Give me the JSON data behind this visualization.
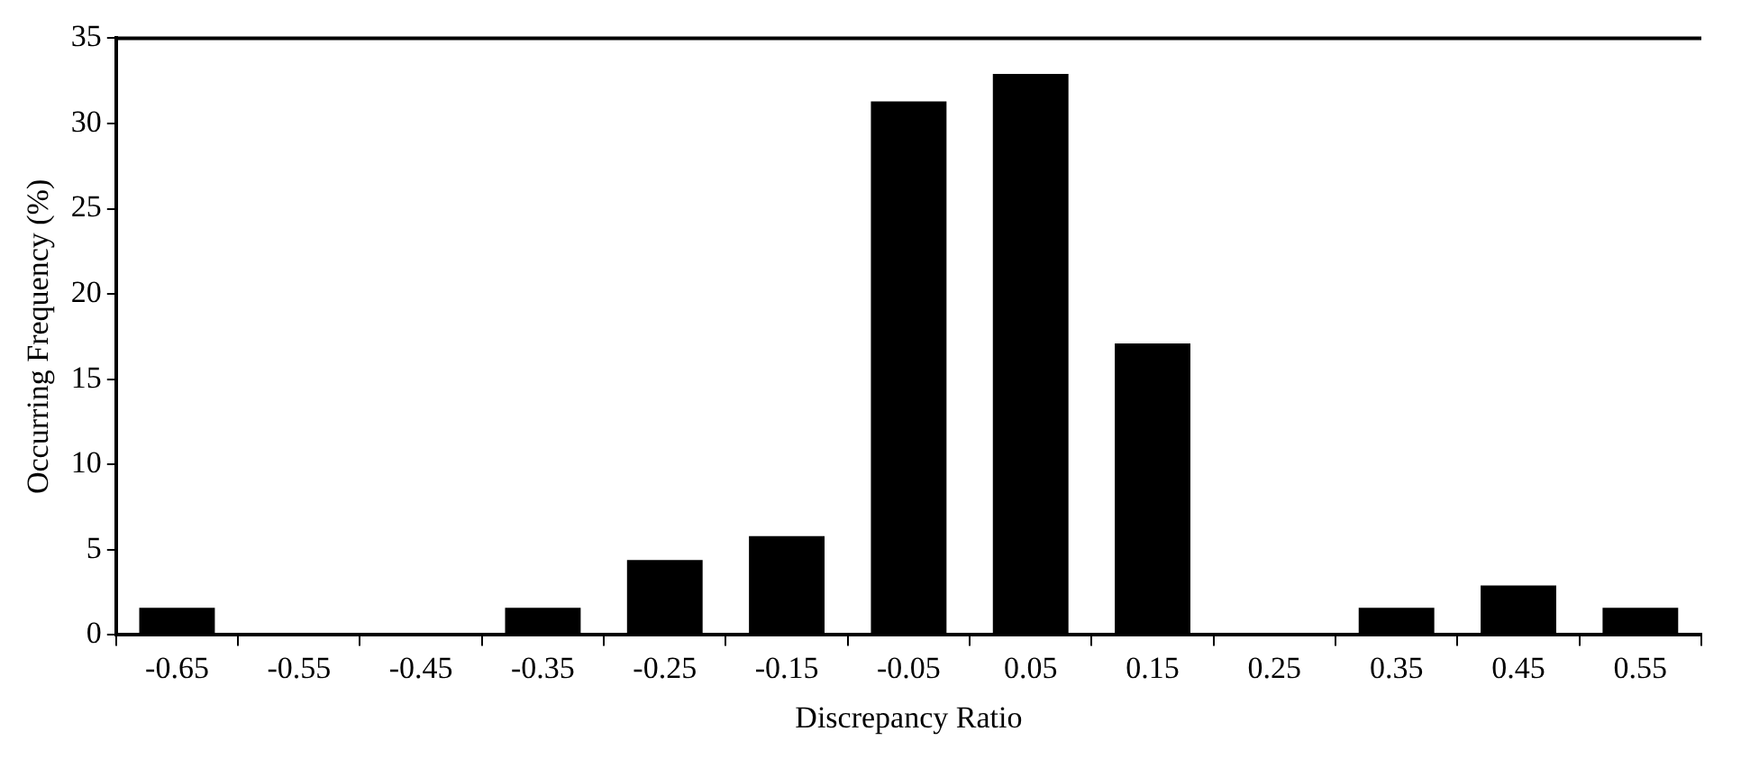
{
  "chart_data": {
    "type": "bar",
    "xlabel": "Discrepancy Ratio",
    "ylabel": "Occurring Frequency (%)",
    "categories": [
      "-0.65",
      "-0.55",
      "-0.45",
      "-0.35",
      "-0.25",
      "-0.15",
      "-0.05",
      "0.05",
      "0.15",
      "0.25",
      "0.35",
      "0.45",
      "0.55"
    ],
    "values": [
      1.6,
      0,
      0,
      1.6,
      4.4,
      5.8,
      31.3,
      32.9,
      17.1,
      0,
      1.6,
      2.9,
      1.6
    ],
    "color": "#000000",
    "ylim": [
      0,
      35
    ],
    "yticks": [
      0,
      5,
      10,
      15,
      20,
      25,
      30,
      35
    ],
    "grid": false,
    "legend": false
  }
}
